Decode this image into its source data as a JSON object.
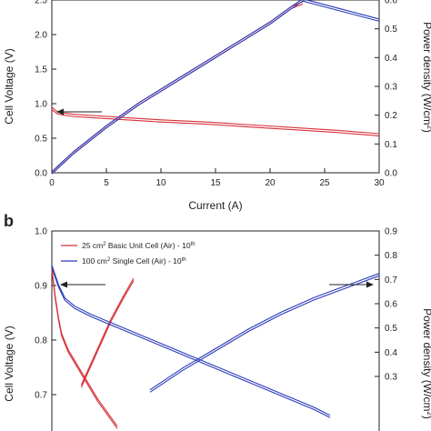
{
  "chart_data": [
    {
      "type": "line",
      "panel_label": "",
      "xlabel": "Current (A)",
      "ylabel": "Cell Voltage (V)",
      "y2label": "Power density (W/cm",
      "y2label_sup": "2",
      "y2label_end": ")",
      "xlim": [
        0,
        30
      ],
      "ylim": [
        0,
        2.5
      ],
      "y2lim": [
        0,
        0.6
      ],
      "xticks": [
        "0",
        "5",
        "10",
        "15",
        "20",
        "25",
        "30"
      ],
      "yticks": [
        "0.0",
        "0.5",
        "1.0",
        "1.5",
        "2.0",
        "2.5"
      ],
      "y2ticks": [
        "0.0",
        "0.1",
        "0.2",
        "0.3",
        "0.4",
        "0.5",
        "0.6"
      ],
      "series": [
        {
          "color": "#d6303a",
          "kind": "voltage",
          "x": [
            0,
            0.5,
            1,
            2,
            4,
            7,
            10,
            14,
            18,
            22,
            26,
            30
          ],
          "y": [
            0.93,
            0.87,
            0.85,
            0.83,
            0.81,
            0.78,
            0.75,
            0.72,
            0.68,
            0.64,
            0.6,
            0.55
          ]
        },
        {
          "color": "#d6303a",
          "kind": "power",
          "x": [
            0,
            2,
            5,
            8,
            11,
            14,
            17,
            20,
            22,
            23
          ],
          "y": [
            0.0,
            0.07,
            0.16,
            0.24,
            0.31,
            0.38,
            0.45,
            0.52,
            0.575,
            0.59
          ]
        },
        {
          "color": "#2a3bb8",
          "kind": "power",
          "x": [
            0,
            2,
            5,
            8,
            11,
            14,
            17,
            20,
            22,
            23,
            24,
            27,
            30
          ],
          "y": [
            0.0,
            0.07,
            0.16,
            0.24,
            0.31,
            0.38,
            0.45,
            0.52,
            0.575,
            0.6,
            0.59,
            0.56,
            0.53
          ]
        }
      ]
    },
    {
      "type": "line",
      "panel_label": "b",
      "xlabel": "",
      "ylabel": "Cell Voltage (V)",
      "y2label": "Power density (W/cm",
      "y2label_sup": "2",
      "y2label_end": ")",
      "ylim": [
        0.6,
        1.0
      ],
      "y2lim": [
        0.0,
        0.9
      ],
      "yticks": [
        "0.7",
        "0.8",
        "0.9",
        "1.0"
      ],
      "y2ticks": [
        "0.3",
        "0.4",
        "0.5",
        "0.6",
        "0.7",
        "0.8",
        "0.9"
      ],
      "legend": [
        {
          "label": "25 cm",
          "sup": "2",
          "rest": " Basic Unit Cell (Air) - 10",
          "sup2": "th",
          "color": "#d6303a"
        },
        {
          "label": "100 cm",
          "sup": "2",
          "rest": " Single Cell (Air) - 10",
          "sup2": "th",
          "color": "#2a3bb8"
        }
      ],
      "series": [
        {
          "color": "#d6303a",
          "kind": "voltage",
          "x": [
            0.0,
            0.01,
            0.02,
            0.03,
            0.05,
            0.08,
            0.11,
            0.14,
            0.17,
            0.2
          ],
          "y": [
            0.93,
            0.88,
            0.84,
            0.81,
            0.78,
            0.75,
            0.72,
            0.69,
            0.665,
            0.64
          ]
        },
        {
          "color": "#d6303a",
          "kind": "power",
          "x": [
            0.09,
            0.12,
            0.15,
            0.18,
            0.22,
            0.25
          ],
          "y": [
            0.26,
            0.35,
            0.44,
            0.53,
            0.63,
            0.7
          ]
        },
        {
          "color": "#2a3bb8",
          "kind": "voltage",
          "x": [
            0.0,
            0.02,
            0.04,
            0.07,
            0.12,
            0.2,
            0.3,
            0.4,
            0.5,
            0.6,
            0.7,
            0.8,
            0.85
          ],
          "y": [
            0.935,
            0.9,
            0.875,
            0.86,
            0.845,
            0.825,
            0.8,
            0.775,
            0.75,
            0.725,
            0.7,
            0.675,
            0.66
          ]
        },
        {
          "color": "#2a3bb8",
          "kind": "power",
          "x": [
            0.3,
            0.4,
            0.5,
            0.6,
            0.7,
            0.8,
            0.9,
            1.0
          ],
          "y": [
            0.24,
            0.33,
            0.41,
            0.49,
            0.56,
            0.62,
            0.67,
            0.72
          ]
        }
      ]
    }
  ]
}
